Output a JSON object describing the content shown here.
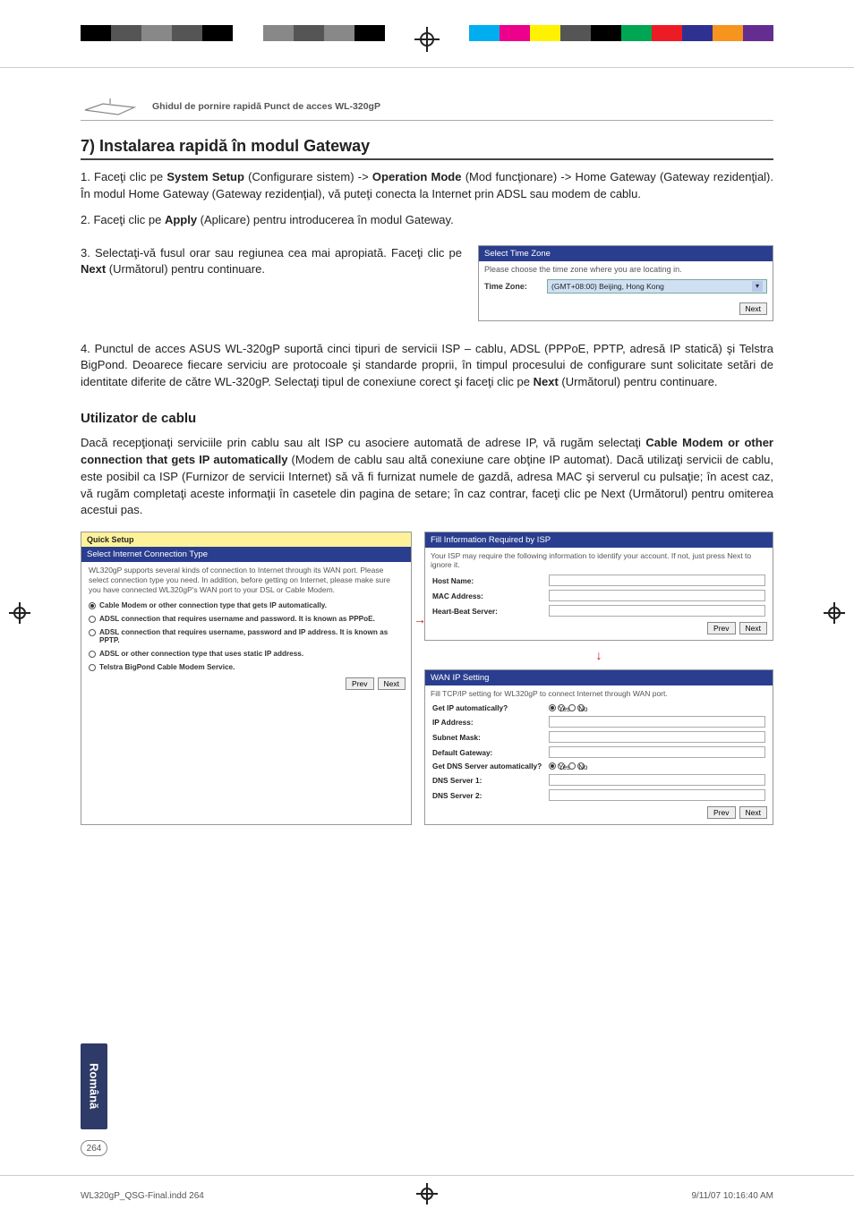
{
  "print_bars_left": [
    "#000000",
    "#555555",
    "#888888",
    "#555555",
    "#000000",
    "#ffffff",
    "#888888",
    "#555555",
    "#888888",
    "#000000"
  ],
  "print_bars_right": [
    "#00aeef",
    "#ec008c",
    "#fff200",
    "#555555",
    "#000000",
    "#00a651",
    "#ed1c24",
    "#2e3192",
    "#f7941d",
    "#662d91"
  ],
  "doc_title": "Ghidul de pornire rapidă Punct de acces WL-320gP",
  "section7": {
    "heading": "7) Instalarea rapidă în modul Gateway",
    "p1_pre": "1.  Faceţi clic pe ",
    "p1_b1": "System Setup",
    "p1_mid1": " (Configurare sistem) -> ",
    "p1_b2": "Operation Mode",
    "p1_mid2": " (Mod funcţionare) -> Home Gateway (Gateway rezidenţial). În modul Home Gateway (Gateway rezidenţial), vă puteţi conecta la Internet prin ADSL sau modem de cablu.",
    "p2_pre": "2.  Faceţi clic pe ",
    "p2_b1": "Apply",
    "p2_post": " (Aplicare) pentru introducerea în modul Gateway.",
    "p3": "3. Selectaţi-vă fusul orar sau regiunea cea mai apropiată. Faceţi clic pe ",
    "p3_b": "Next",
    "p3_post": " (Următorul) pentru continuare.",
    "p4_pre": "4. Punctul de acces ASUS WL-320gP suportă cinci tipuri de servicii ISP – cablu, ADSL (PPPoE, PPTP, adresă IP statică) şi Telstra BigPond. Deoarece fiecare serviciu are protocoale şi standarde proprii, în timpul procesului de configurare sunt solicitate setări de identitate diferite de către WL-320gP. Selectaţi tipul de conexiune corect şi faceţi clic pe ",
    "p4_b": "Next",
    "p4_post": " (Următorul) pentru continuare."
  },
  "subheading": "Utilizator de cablu",
  "subpara_pre": "Dacă recepţionaţi serviciile prin cablu sau alt ISP cu asociere automată de adrese IP, vă rugăm selectaţi ",
  "subpara_b": "Cable Modem or other connection that gets IP automatically",
  "subpara_post": " (Modem de cablu sau altă conexiune care obţine IP automat). Dacă utilizaţi servicii de cablu, este posibil ca ISP (Furnizor de servicii Internet) să vă fi furnizat numele de gazdă, adresa MAC şi serverul cu pulsaţie; în acest caz, vă rugăm completaţi aceste informaţii în casetele din pagina de setare; în caz contrar, faceţi clic pe Next (Următorul) pentru omiterea acestui pas.",
  "tz_panel": {
    "header": "Select Time Zone",
    "line": "Please choose the time zone where you are locating in.",
    "label": "Time Zone:",
    "value": "(GMT+08:00) Beijing, Hong Kong",
    "next": "Next"
  },
  "qs": {
    "tab": "Quick Setup",
    "header": "Select Internet Connection Type",
    "body": "WL320gP supports several kinds of connection to Internet through its WAN port. Please select connection type you need. In addition, before getting on Internet, please make sure you have connected WL320gP's WAN port to your DSL or Cable Modem.",
    "opt1": "Cable Modem or other connection type that gets IP automatically.",
    "opt2": "ADSL connection that requires username and password. It is known as PPPoE.",
    "opt3": "ADSL connection that requires username, password and IP address. It is known as PPTP.",
    "opt4": "ADSL or other connection type that uses static IP address.",
    "opt5": "Telstra BigPond Cable Modem Service.",
    "prev": "Prev",
    "next": "Next"
  },
  "isp": {
    "header": "Fill Information Required by ISP",
    "line": "Your ISP may require the following information to identify your account. If not, just press Next to ignore it.",
    "hostname": "Host Name:",
    "mac": "MAC Address:",
    "hb": "Heart-Beat Server:",
    "prev": "Prev",
    "next": "Next"
  },
  "wan": {
    "header": "WAN IP Setting",
    "line": "Fill TCP/IP setting for WL320gP to connect Internet through WAN port.",
    "auto": "Get IP automatically?",
    "ip": "IP Address:",
    "mask": "Subnet Mask:",
    "gw": "Default Gateway:",
    "dnsauto": "Get DNS Server automatically?",
    "dns1": "DNS Server 1:",
    "dns2": "DNS Server 2:",
    "yes": "Yes",
    "no": "No",
    "prev": "Prev",
    "next": "Next"
  },
  "lang_tab": "Română",
  "page_num": "264",
  "footer_file": "WL320gP_QSG-Final.indd   264",
  "footer_date": "9/11/07   10:16:40 AM"
}
